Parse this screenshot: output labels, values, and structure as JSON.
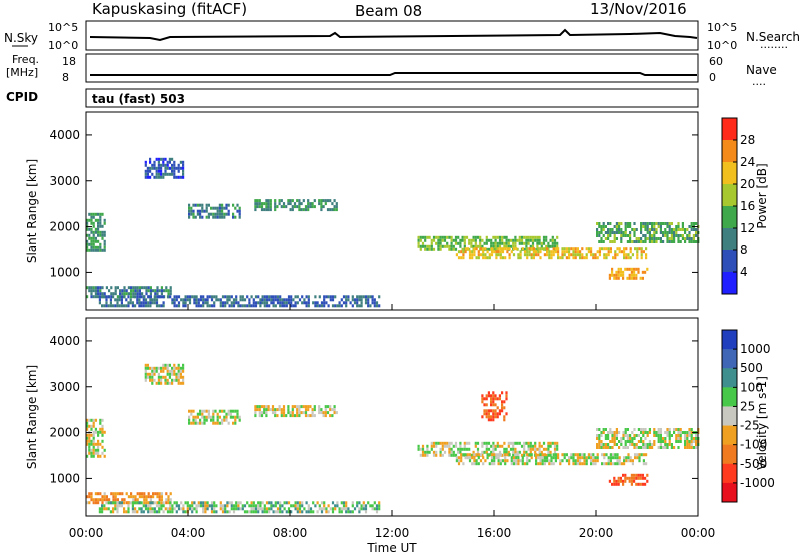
{
  "header": {
    "radar_title": "Kapuskasing (fitACF)",
    "beam": "Beam 08",
    "date": "13/Nov/2016"
  },
  "mini_panels": {
    "nsky": {
      "label": "N.Sky",
      "tick_top": "10^5",
      "tick_bottom": "10^0"
    },
    "nsearch": {
      "label": "N.Search",
      "tick_top": "10^5",
      "tick_bottom": "10^0",
      "legend_dots": "........"
    },
    "freq": {
      "label_line1": "Freq.",
      "label_line2": "[MHz]",
      "tick_top": "18",
      "tick_bottom": "8"
    },
    "nave": {
      "label": "Nave",
      "tick_top": "60",
      "tick_bottom": "0",
      "legend_dots": "...."
    },
    "cpid": {
      "label": "CPID",
      "value_text": "tau (fast) 503"
    }
  },
  "axes": {
    "y_label": "Slant Range [km]",
    "y_ticks": [
      "1000",
      "2000",
      "3000",
      "4000"
    ],
    "x_label": "Time UT",
    "x_ticks": [
      "00:00",
      "04:00",
      "08:00",
      "12:00",
      "16:00",
      "20:00",
      "00:00"
    ]
  },
  "colorbars": {
    "power": {
      "label": "Power [dB]",
      "ticks": [
        "4",
        "8",
        "12",
        "16",
        "20",
        "24",
        "28"
      ],
      "colors": [
        "#1f1fff",
        "#2e4fb8",
        "#3f7f7f",
        "#3fa84a",
        "#a7c82f",
        "#f2c01e",
        "#f48a1a",
        "#ff2a1a"
      ]
    },
    "velocity": {
      "label": "Velocity [m s-1]",
      "ticks": [
        "1000",
        "500",
        "100",
        "25",
        "-25",
        "-100",
        "-500",
        "-1000"
      ],
      "colors": [
        "#1f3fbf",
        "#3f67b6",
        "#3f8f8f",
        "#48c848",
        "#c8c8c0",
        "#f0a020",
        "#f07a20",
        "#ff3a1f",
        "#e8101c"
      ]
    }
  },
  "chart_data": [
    {
      "type": "heatmap",
      "title": "Power",
      "xlabel": "Time UT",
      "ylabel": "Slant Range [km]",
      "xlim": [
        0,
        24
      ],
      "ylim": [
        180,
        4500
      ],
      "regions": [
        {
          "t0": 0.0,
          "t1": 0.7,
          "r0": 1500,
          "r1": 2300,
          "value": 12
        },
        {
          "t0": 0.0,
          "t1": 3.3,
          "r0": 500,
          "r1": 700,
          "value": 10
        },
        {
          "t0": 2.3,
          "t1": 3.8,
          "r0": 3100,
          "r1": 3500,
          "value": 6
        },
        {
          "t0": 4.0,
          "t1": 6.0,
          "r0": 2200,
          "r1": 2500,
          "value": 10
        },
        {
          "t0": 6.6,
          "t1": 9.8,
          "r0": 2350,
          "r1": 2600,
          "value": 12
        },
        {
          "t0": 0.5,
          "t1": 11.5,
          "r0": 250,
          "r1": 500,
          "value": 8
        },
        {
          "t0": 13.0,
          "t1": 18.5,
          "r0": 1500,
          "r1": 1800,
          "value": 16
        },
        {
          "t0": 14.5,
          "t1": 22.0,
          "r0": 1300,
          "r1": 1550,
          "value": 22
        },
        {
          "t0": 20.0,
          "t1": 24.0,
          "r0": 1700,
          "r1": 2100,
          "value": 14
        },
        {
          "t0": 20.5,
          "t1": 22.0,
          "r0": 850,
          "r1": 1100,
          "value": 24
        }
      ]
    },
    {
      "type": "heatmap",
      "title": "Velocity",
      "xlabel": "Time UT",
      "ylabel": "Slant Range [km]",
      "xlim": [
        0,
        24
      ],
      "ylim": [
        180,
        4500
      ],
      "regions": [
        {
          "t0": 0.0,
          "t1": 0.7,
          "r0": 1500,
          "r1": 2300,
          "value": 0
        },
        {
          "t0": 0.0,
          "t1": 3.3,
          "r0": 500,
          "r1": 700,
          "value": -100
        },
        {
          "t0": 2.3,
          "t1": 3.8,
          "r0": 3100,
          "r1": 3500,
          "value": 0
        },
        {
          "t0": 4.0,
          "t1": 6.0,
          "r0": 2200,
          "r1": 2500,
          "value": 0
        },
        {
          "t0": 6.6,
          "t1": 9.8,
          "r0": 2350,
          "r1": 2600,
          "value": 0
        },
        {
          "t0": 0.5,
          "t1": 11.5,
          "r0": 250,
          "r1": 500,
          "value": 40
        },
        {
          "t0": 13.0,
          "t1": 18.5,
          "r0": 1500,
          "r1": 1800,
          "value": 0
        },
        {
          "t0": 14.5,
          "t1": 22.0,
          "r0": 1300,
          "r1": 1550,
          "value": 0
        },
        {
          "t0": 15.5,
          "t1": 16.5,
          "r0": 2300,
          "r1": 2900,
          "value": -500
        },
        {
          "t0": 20.0,
          "t1": 24.0,
          "r0": 1700,
          "r1": 2100,
          "value": 0
        },
        {
          "t0": 20.5,
          "t1": 22.0,
          "r0": 850,
          "r1": 1100,
          "value": -500
        }
      ]
    }
  ]
}
